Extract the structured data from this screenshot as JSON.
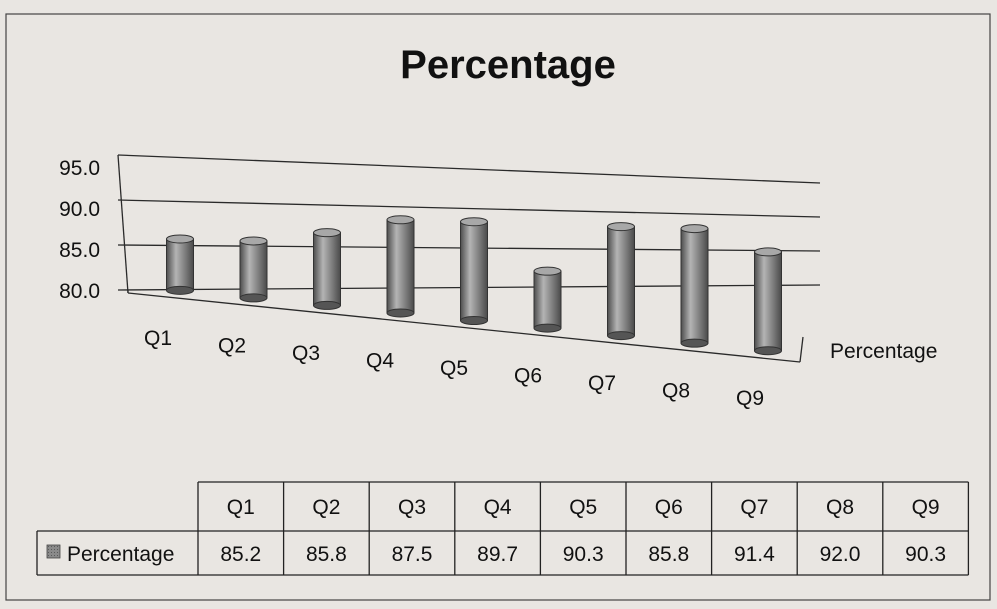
{
  "chart_data": {
    "type": "bar",
    "style": "3d-cylinder",
    "title": "Percentage",
    "categories": [
      "Q1",
      "Q2",
      "Q3",
      "Q4",
      "Q5",
      "Q6",
      "Q7",
      "Q8",
      "Q9"
    ],
    "series": [
      {
        "name": "Percentage",
        "values": [
          85.2,
          85.8,
          87.5,
          89.7,
          90.3,
          85.8,
          91.4,
          92.0,
          90.3
        ]
      }
    ],
    "y_ticks": [
      "95.0",
      "90.0",
      "85.0",
      "80.0"
    ],
    "ylim": [
      80,
      95
    ],
    "grid": true,
    "legend": "right",
    "data_table": true,
    "colors": {
      "bar_fill": "#8c8c8c",
      "bar_dark": "#4d4d4d",
      "bar_light": "#c4c4c4",
      "axis": "#2a2a2a",
      "background": "#e9e6e2"
    }
  }
}
